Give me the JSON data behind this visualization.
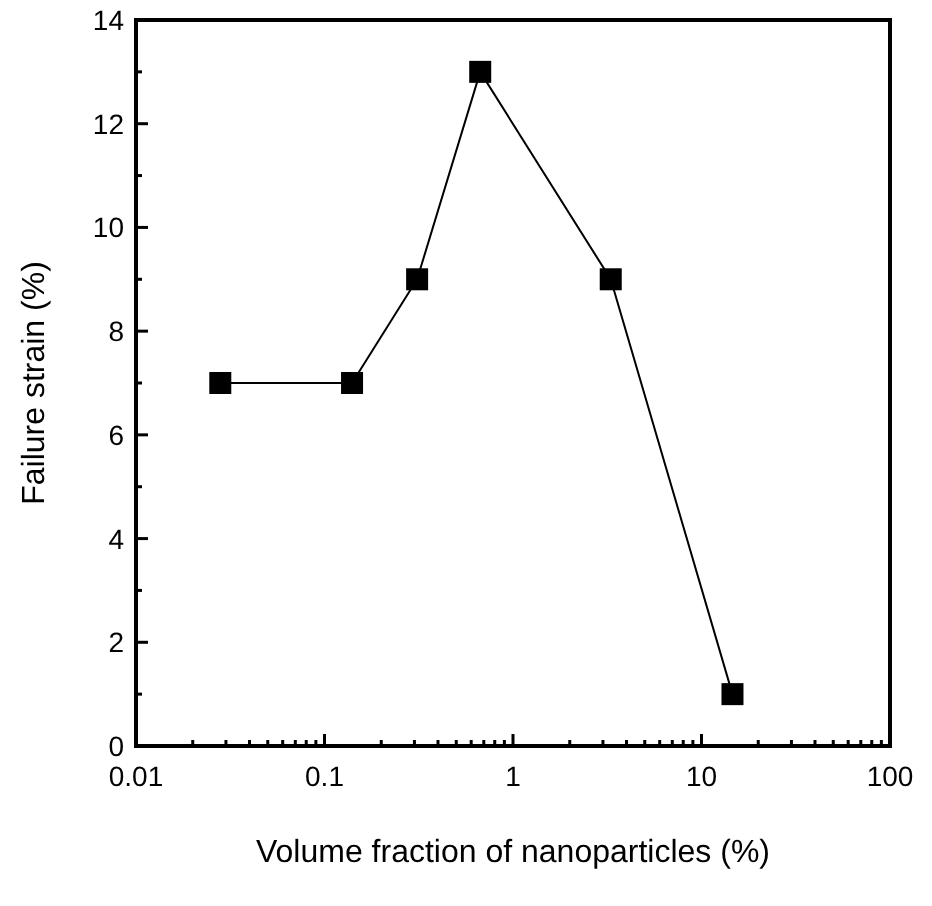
{
  "chart_data": {
    "type": "line",
    "xlabel": "Volume fraction of nanoparticles (%)",
    "ylabel": "Failure strain (%)",
    "log": "x",
    "marker": "square",
    "line_style": "solid",
    "xlim": [
      0.01,
      100
    ],
    "xticks": [
      0.01,
      0.1,
      1,
      10,
      100
    ],
    "ylim": [
      0,
      14
    ],
    "yticks": [
      0,
      2,
      4,
      6,
      8,
      10,
      12,
      14
    ],
    "x": [
      0.028,
      0.14,
      0.31,
      0.67,
      3.3,
      14.6
    ],
    "series": [
      {
        "color": "#000000",
        "values": [
          7,
          7,
          9,
          13,
          9,
          1
        ]
      }
    ]
  }
}
